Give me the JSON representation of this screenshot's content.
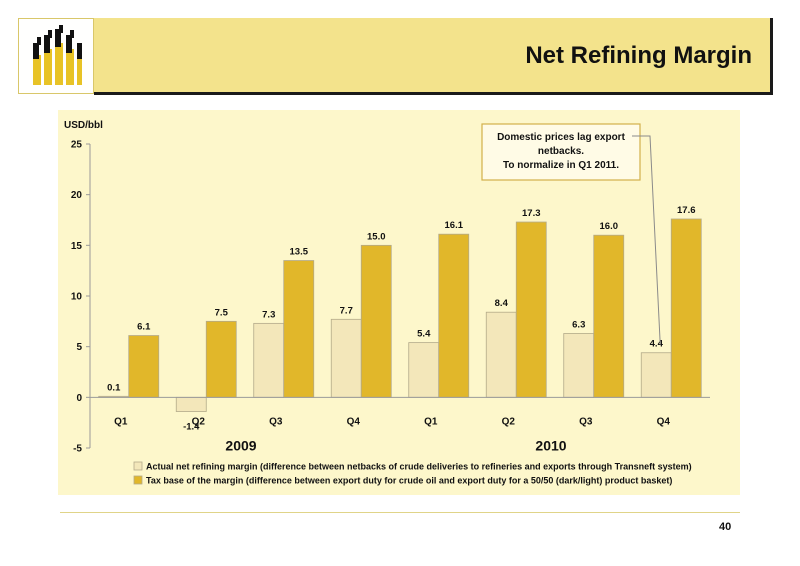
{
  "header": {
    "title": "Net Refining Margin"
  },
  "footer": {
    "page_number": "40"
  },
  "colors": {
    "title_band": "#f3e38c",
    "panel": "#fdf7cb",
    "actual": "#f3e7ba",
    "tax": "#e1b72a",
    "logo": "#e8c326"
  },
  "icons": {
    "logo": "company-logo-icon"
  },
  "chart_data": {
    "type": "bar",
    "ylabel": "USD/bbl",
    "ylim": [
      -5,
      25
    ],
    "yticks": [
      -5,
      0,
      5,
      10,
      15,
      20,
      25
    ],
    "categories": [
      "Q1",
      "Q2",
      "Q3",
      "Q4",
      "Q1",
      "Q2",
      "Q3",
      "Q4"
    ],
    "groups": [
      {
        "label": "2009",
        "categories": [
          "Q1",
          "Q2",
          "Q3",
          "Q4"
        ]
      },
      {
        "label": "2010",
        "categories": [
          "Q1",
          "Q2",
          "Q3",
          "Q4"
        ]
      }
    ],
    "series": [
      {
        "name": "Actual net refining margin (difference between netbacks of crude deliveries to refineries and exports through Transneft system)",
        "values": [
          0.1,
          -1.4,
          7.3,
          7.7,
          5.4,
          8.4,
          6.3,
          4.4
        ],
        "color": "#f3e7ba",
        "labels": [
          "0.1",
          "-1.4",
          "7.3",
          "7.7",
          "5.4",
          "8.4",
          "6.3",
          "4.4"
        ]
      },
      {
        "name": "Tax base of the margin (difference between export duty for crude oil and export duty for a 50/50 (dark/light) product basket)",
        "values": [
          6.1,
          7.5,
          13.5,
          15.0,
          16.1,
          17.3,
          16.0,
          17.6
        ],
        "color": "#e1b72a",
        "labels": [
          "6.1",
          "7.5",
          "13.5",
          "15.0",
          "16.1",
          "17.3",
          "16.0",
          "17.6"
        ]
      }
    ],
    "annotation": {
      "lines": [
        "Domestic prices lag export",
        "netbacks.",
        "To normalize in Q1 2011."
      ],
      "points_to": "Q4 2010"
    },
    "legend_position": "bottom",
    "grid": false
  }
}
